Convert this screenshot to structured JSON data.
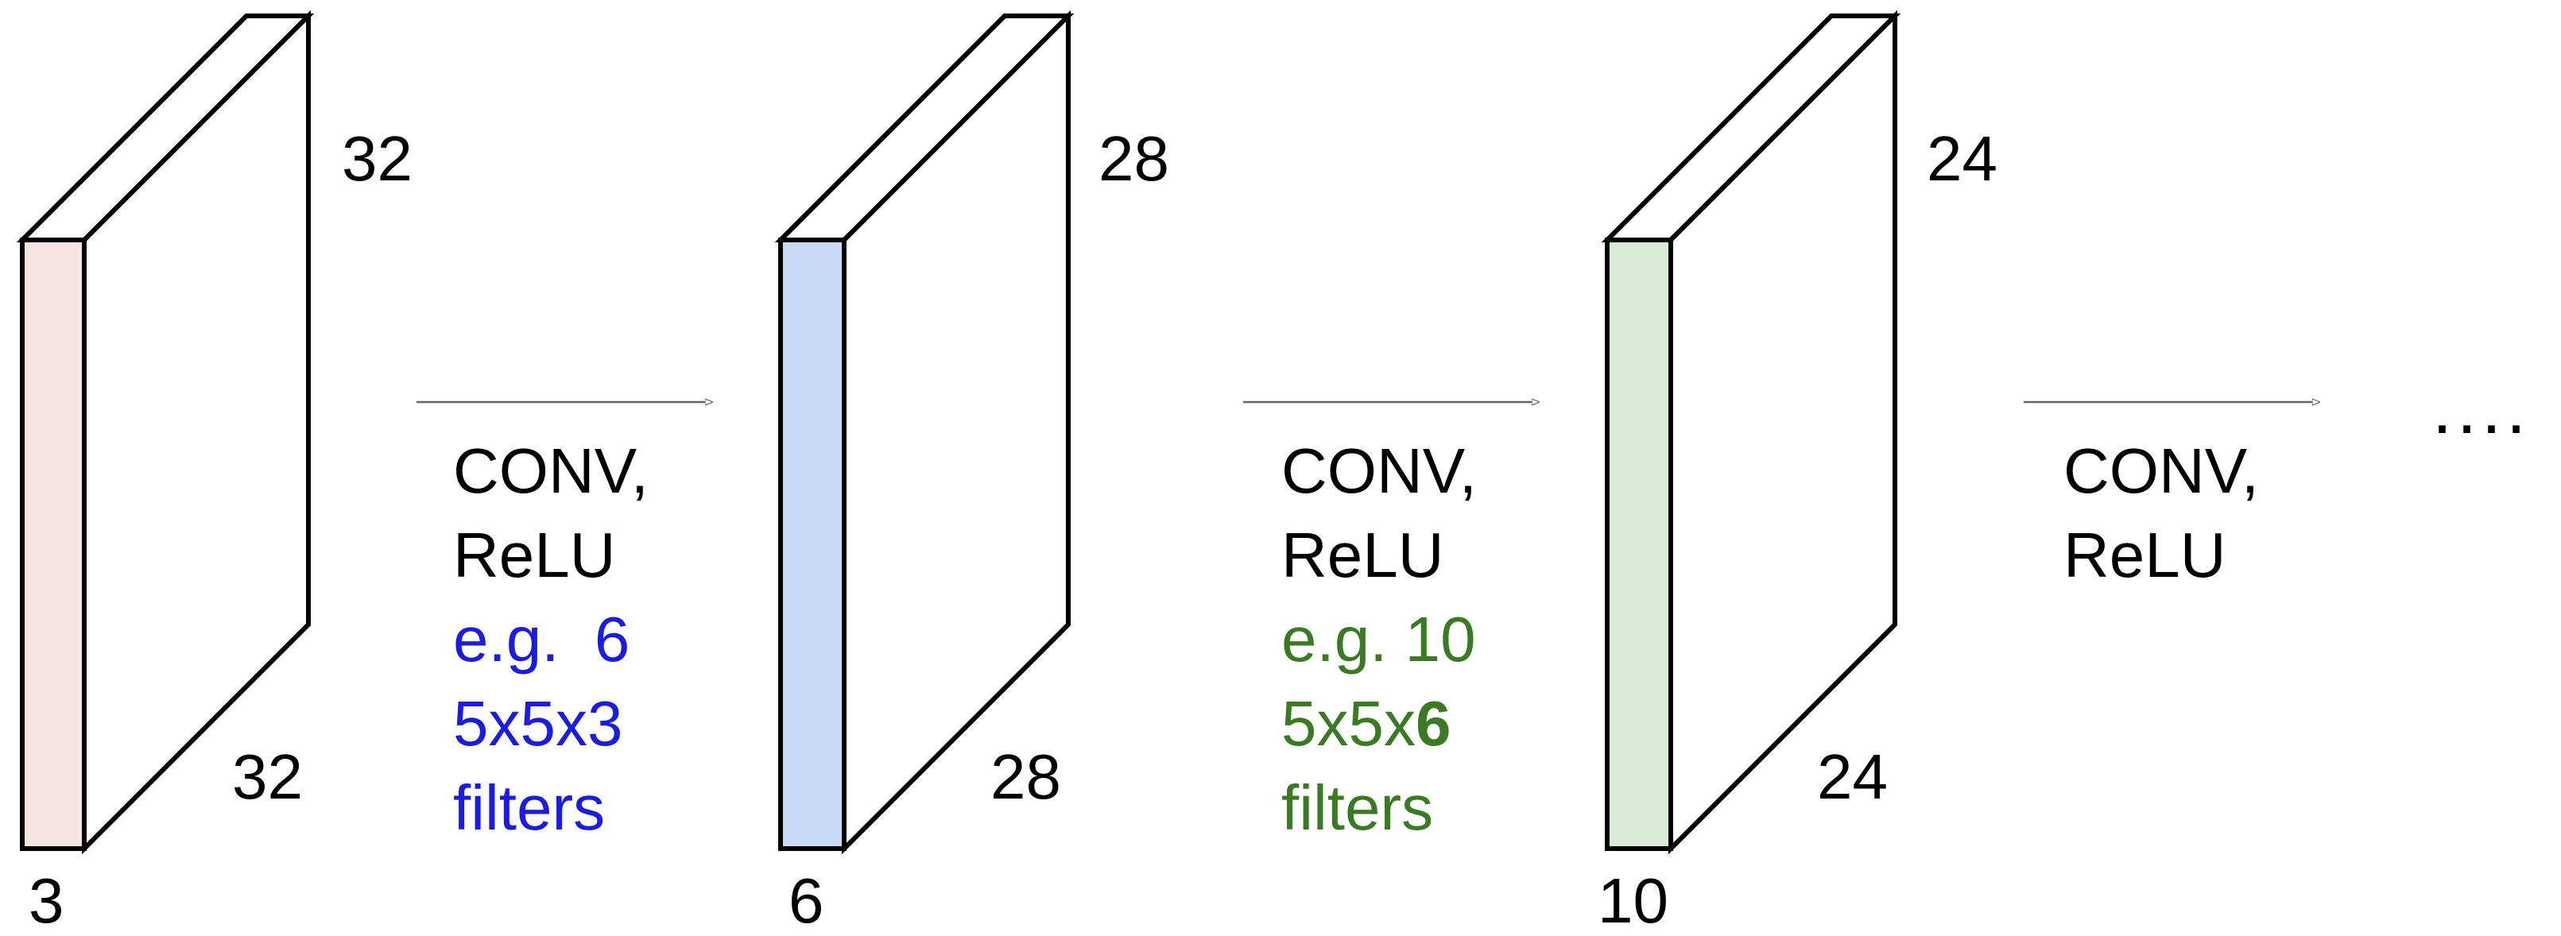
{
  "volumes": [
    {
      "depth": "3",
      "height_label": "32",
      "width_label": "32",
      "front_color": "#f7e3e3"
    },
    {
      "depth": "6",
      "height_label": "28",
      "width_label": "28",
      "front_color": "#c8daf6"
    },
    {
      "depth": "10",
      "height_label": "24",
      "width_label": "24",
      "front_color": "#d8ebd4"
    }
  ],
  "stages": [
    {
      "line1": "CONV,",
      "line2": "ReLU",
      "line3": "e.g.  6",
      "line4a": "5x5x3",
      "line4b": "",
      "line5": "filters",
      "color": "#1b1be6"
    },
    {
      "line1": "CONV,",
      "line2": "ReLU",
      "line3": "e.g. 10",
      "line4a": "5x5x",
      "line4b": "6",
      "line5": "filters",
      "color": "#3a7a22"
    },
    {
      "line1": "CONV,",
      "line2": "ReLU"
    }
  ],
  "ellipsis": "...."
}
